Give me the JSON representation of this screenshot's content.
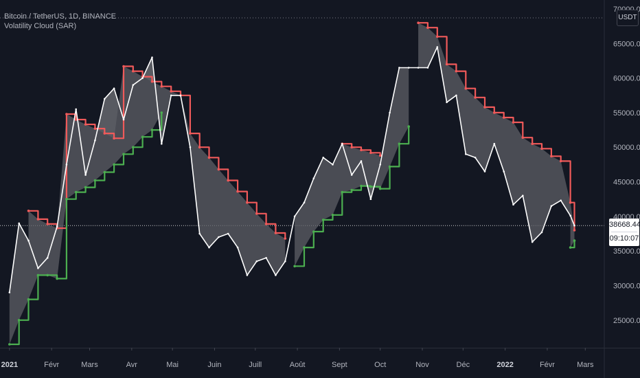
{
  "symbol_title": "Bitcoin / TetherUS, 1D, BINANCE",
  "indicator_title": "Volatility Cloud (SAR)",
  "unit_badge": "USDT",
  "last_price": "38668.44",
  "countdown": "09:10:07",
  "colors": {
    "background": "#131722",
    "price_line": "#ffffff",
    "upper_band": "#f05a5a",
    "lower_band": "#4caf50",
    "cloud_fill": "#5d5f66",
    "axis_text": "#b2b5be"
  },
  "chart_data": {
    "type": "line",
    "title": "Bitcoin / TetherUS, 1D, BINANCE",
    "xlabel": "",
    "ylabel": "",
    "ylim": [
      21000,
      70500
    ],
    "y_ticks": [
      "25000.00",
      "30000.00",
      "35000.00",
      "40000.00",
      "45000.00",
      "50000.00",
      "55000.00",
      "60000.00",
      "65000.00",
      "70000.00"
    ],
    "x_ticks": [
      "2021",
      "Févr",
      "Mars",
      "Avr",
      "Mai",
      "Juin",
      "Juill",
      "Août",
      "Sept",
      "Oct",
      "Nov",
      "Déc",
      "2022",
      "Févr",
      "Mars"
    ],
    "x": [
      "2021-01-01",
      "2021-01-08",
      "2021-01-15",
      "2021-01-22",
      "2021-01-29",
      "2021-02-05",
      "2021-02-12",
      "2021-02-19",
      "2021-02-26",
      "2021-03-05",
      "2021-03-12",
      "2021-03-19",
      "2021-03-26",
      "2021-04-02",
      "2021-04-09",
      "2021-04-16",
      "2021-04-23",
      "2021-04-30",
      "2021-05-07",
      "2021-05-14",
      "2021-05-21",
      "2021-05-28",
      "2021-06-04",
      "2021-06-11",
      "2021-06-18",
      "2021-06-25",
      "2021-07-02",
      "2021-07-09",
      "2021-07-16",
      "2021-07-23",
      "2021-07-30",
      "2021-08-06",
      "2021-08-13",
      "2021-08-20",
      "2021-08-27",
      "2021-09-03",
      "2021-09-10",
      "2021-09-17",
      "2021-09-24",
      "2021-10-01",
      "2021-10-08",
      "2021-10-15",
      "2021-10-22",
      "2021-10-29",
      "2021-11-05",
      "2021-11-12",
      "2021-11-19",
      "2021-11-26",
      "2021-12-03",
      "2021-12-10",
      "2021-12-17",
      "2021-12-24",
      "2021-12-31",
      "2022-01-07",
      "2022-01-14",
      "2022-01-21",
      "2022-01-28",
      "2022-02-04",
      "2022-02-11",
      "2022-02-18",
      "2022-02-21"
    ],
    "series": [
      {
        "values": [
          29000,
          39000,
          36500,
          32500,
          34000,
          38500,
          47500,
          55500,
          46000,
          51000,
          57000,
          58500,
          54000,
          59000,
          60000,
          63000,
          50500,
          57500,
          57500,
          50000,
          37500,
          35500,
          37000,
          37500,
          35500,
          31500,
          33500,
          34000,
          31500,
          33500,
          40000,
          42000,
          45500,
          48500,
          47500,
          50500,
          46000,
          48000,
          42500,
          47500,
          55000,
          61500,
          61500,
          61500,
          61500,
          64500,
          56500,
          57500,
          49000,
          48500,
          46500,
          50500,
          46500,
          41700,
          43000,
          36300,
          37700,
          41500,
          42300,
          40100,
          38668
        ]
      },
      {
        "values": [
          null,
          null,
          40800,
          39600,
          38900,
          38300,
          54800,
          54000,
          53300,
          52700,
          52000,
          51300,
          61700,
          61000,
          60200,
          59500,
          58800,
          58100,
          57500,
          52000,
          50000,
          48500,
          46800,
          45200,
          43600,
          42000,
          40400,
          38900,
          37600,
          36800,
          null,
          null,
          null,
          null,
          null,
          50500,
          50000,
          49600,
          49200,
          48800,
          null,
          null,
          null,
          68000,
          67300,
          66000,
          62000,
          61000,
          58500,
          57200,
          55800,
          55000,
          54300,
          53600,
          51400,
          50500,
          49800,
          48700,
          48000,
          42000,
          38000
        ]
      },
      {
        "values": [
          21500,
          25000,
          28000,
          31500,
          31500,
          31000,
          42500,
          43500,
          44200,
          45200,
          46400,
          47500,
          49000,
          50000,
          51500,
          52500,
          55000,
          null,
          null,
          null,
          null,
          null,
          null,
          null,
          null,
          null,
          null,
          null,
          null,
          null,
          32800,
          35500,
          37800,
          39500,
          40200,
          43500,
          43800,
          44400,
          44300,
          44000,
          47200,
          50500,
          53000,
          null,
          null,
          null,
          null,
          null,
          null,
          null,
          null,
          null,
          null,
          null,
          null,
          null,
          null,
          null,
          null,
          35500,
          36500
        ]
      }
    ]
  }
}
